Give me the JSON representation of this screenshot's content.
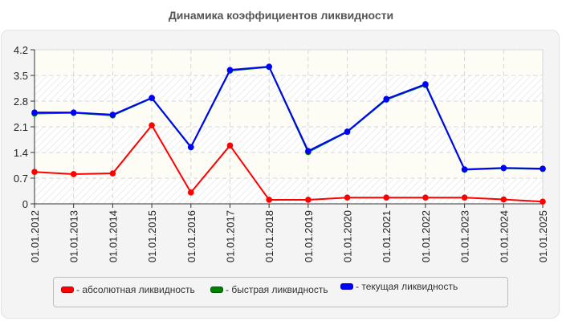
{
  "chart_data": {
    "type": "line",
    "title": "Динамика коэффициентов ликвидности",
    "xlabel": "",
    "ylabel": "",
    "ylim": [
      0,
      4.2
    ],
    "yticks": [
      "0",
      "0.7",
      "1.4",
      "2.1",
      "2.8",
      "3.5",
      "4.2"
    ],
    "grid": true,
    "legend_position": "bottom",
    "categories": [
      "01.01.2012",
      "01.01.2013",
      "01.01.2014",
      "01.01.2015",
      "01.01.2016",
      "01.01.2017",
      "01.01.2018",
      "01.01.2019",
      "01.01.2020",
      "01.01.2021",
      "01.01.2022",
      "01.01.2023",
      "01.01.2024",
      "01.01.2025"
    ],
    "series": [
      {
        "name": "абсолютная ликвидность",
        "color": "#ff0000",
        "values": [
          0.87,
          0.81,
          0.83,
          2.14,
          0.31,
          1.59,
          0.11,
          0.11,
          0.17,
          0.17,
          0.17,
          0.17,
          0.12,
          0.06
        ]
      },
      {
        "name": "быстрая ликвидность",
        "color": "#008000",
        "values": [
          2.46,
          2.48,
          2.41,
          2.88,
          1.54,
          3.63,
          3.73,
          1.41,
          1.96,
          2.84,
          3.24,
          0.93,
          0.97,
          0.95
        ]
      },
      {
        "name": "текущая ликвидность",
        "color": "#0000ff",
        "values": [
          2.49,
          2.49,
          2.43,
          2.89,
          1.55,
          3.65,
          3.74,
          1.44,
          1.97,
          2.86,
          3.26,
          0.94,
          0.98,
          0.96
        ]
      }
    ]
  },
  "legend": {
    "items": [
      {
        "label": "- абсолютная ликвидность",
        "color": "#ff0000"
      },
      {
        "label": "- быстрая ликвидность",
        "color": "#008000"
      },
      {
        "label": "- текущая ликвидность",
        "color": "#0000ff"
      }
    ]
  }
}
